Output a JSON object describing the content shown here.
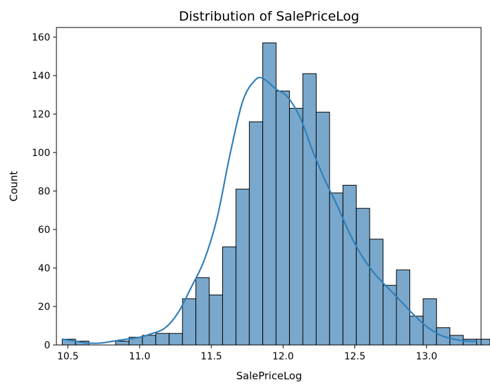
{
  "chart_data": {
    "type": "bar",
    "title": "Distribution of SalePriceLog",
    "xlabel": "SalePriceLog",
    "ylabel": "Count",
    "xlim": [
      10.42,
      13.38
    ],
    "ylim": [
      0,
      165
    ],
    "xticks": [
      10.5,
      11.0,
      11.5,
      12.0,
      12.5,
      13.0
    ],
    "xtick_labels": [
      "10.5",
      "11.0",
      "11.5",
      "12.0",
      "12.5",
      "13.0"
    ],
    "yticks": [
      0,
      20,
      40,
      60,
      80,
      100,
      120,
      140,
      160
    ],
    "ytick_labels": [
      "0",
      "20",
      "40",
      "60",
      "80",
      "100",
      "120",
      "140",
      "160"
    ],
    "grid": false,
    "legend": "none",
    "bar_color": "#7aa8cc",
    "kde_color": "#2f7fba",
    "bins": {
      "start": 10.46,
      "width": 0.0932,
      "counts": [
        3,
        2,
        0,
        0,
        2,
        4,
        5,
        6,
        6,
        24,
        35,
        26,
        51,
        81,
        116,
        157,
        132,
        123,
        141,
        121,
        79,
        83,
        71,
        55,
        31,
        39,
        15,
        24,
        9,
        5,
        3,
        3,
        3
      ]
    },
    "kde": {
      "x": [
        10.46,
        10.55,
        10.64,
        10.73,
        10.82,
        10.91,
        11.0,
        11.09,
        11.18,
        11.27,
        11.36,
        11.45,
        11.54,
        11.63,
        11.72,
        11.81,
        11.87,
        11.95,
        12.03,
        12.12,
        12.2,
        12.29,
        12.38,
        12.47,
        12.56,
        12.65,
        12.74,
        12.83,
        12.92,
        13.01,
        13.1,
        13.19,
        13.28,
        13.35
      ],
      "y": [
        3,
        2,
        1,
        1,
        2,
        3,
        4,
        6,
        9,
        17,
        30,
        44,
        66,
        99,
        127,
        138,
        138,
        133,
        129,
        118,
        102,
        86,
        72,
        57,
        45,
        36,
        29,
        22,
        15,
        9,
        5,
        3,
        2,
        2
      ]
    }
  }
}
